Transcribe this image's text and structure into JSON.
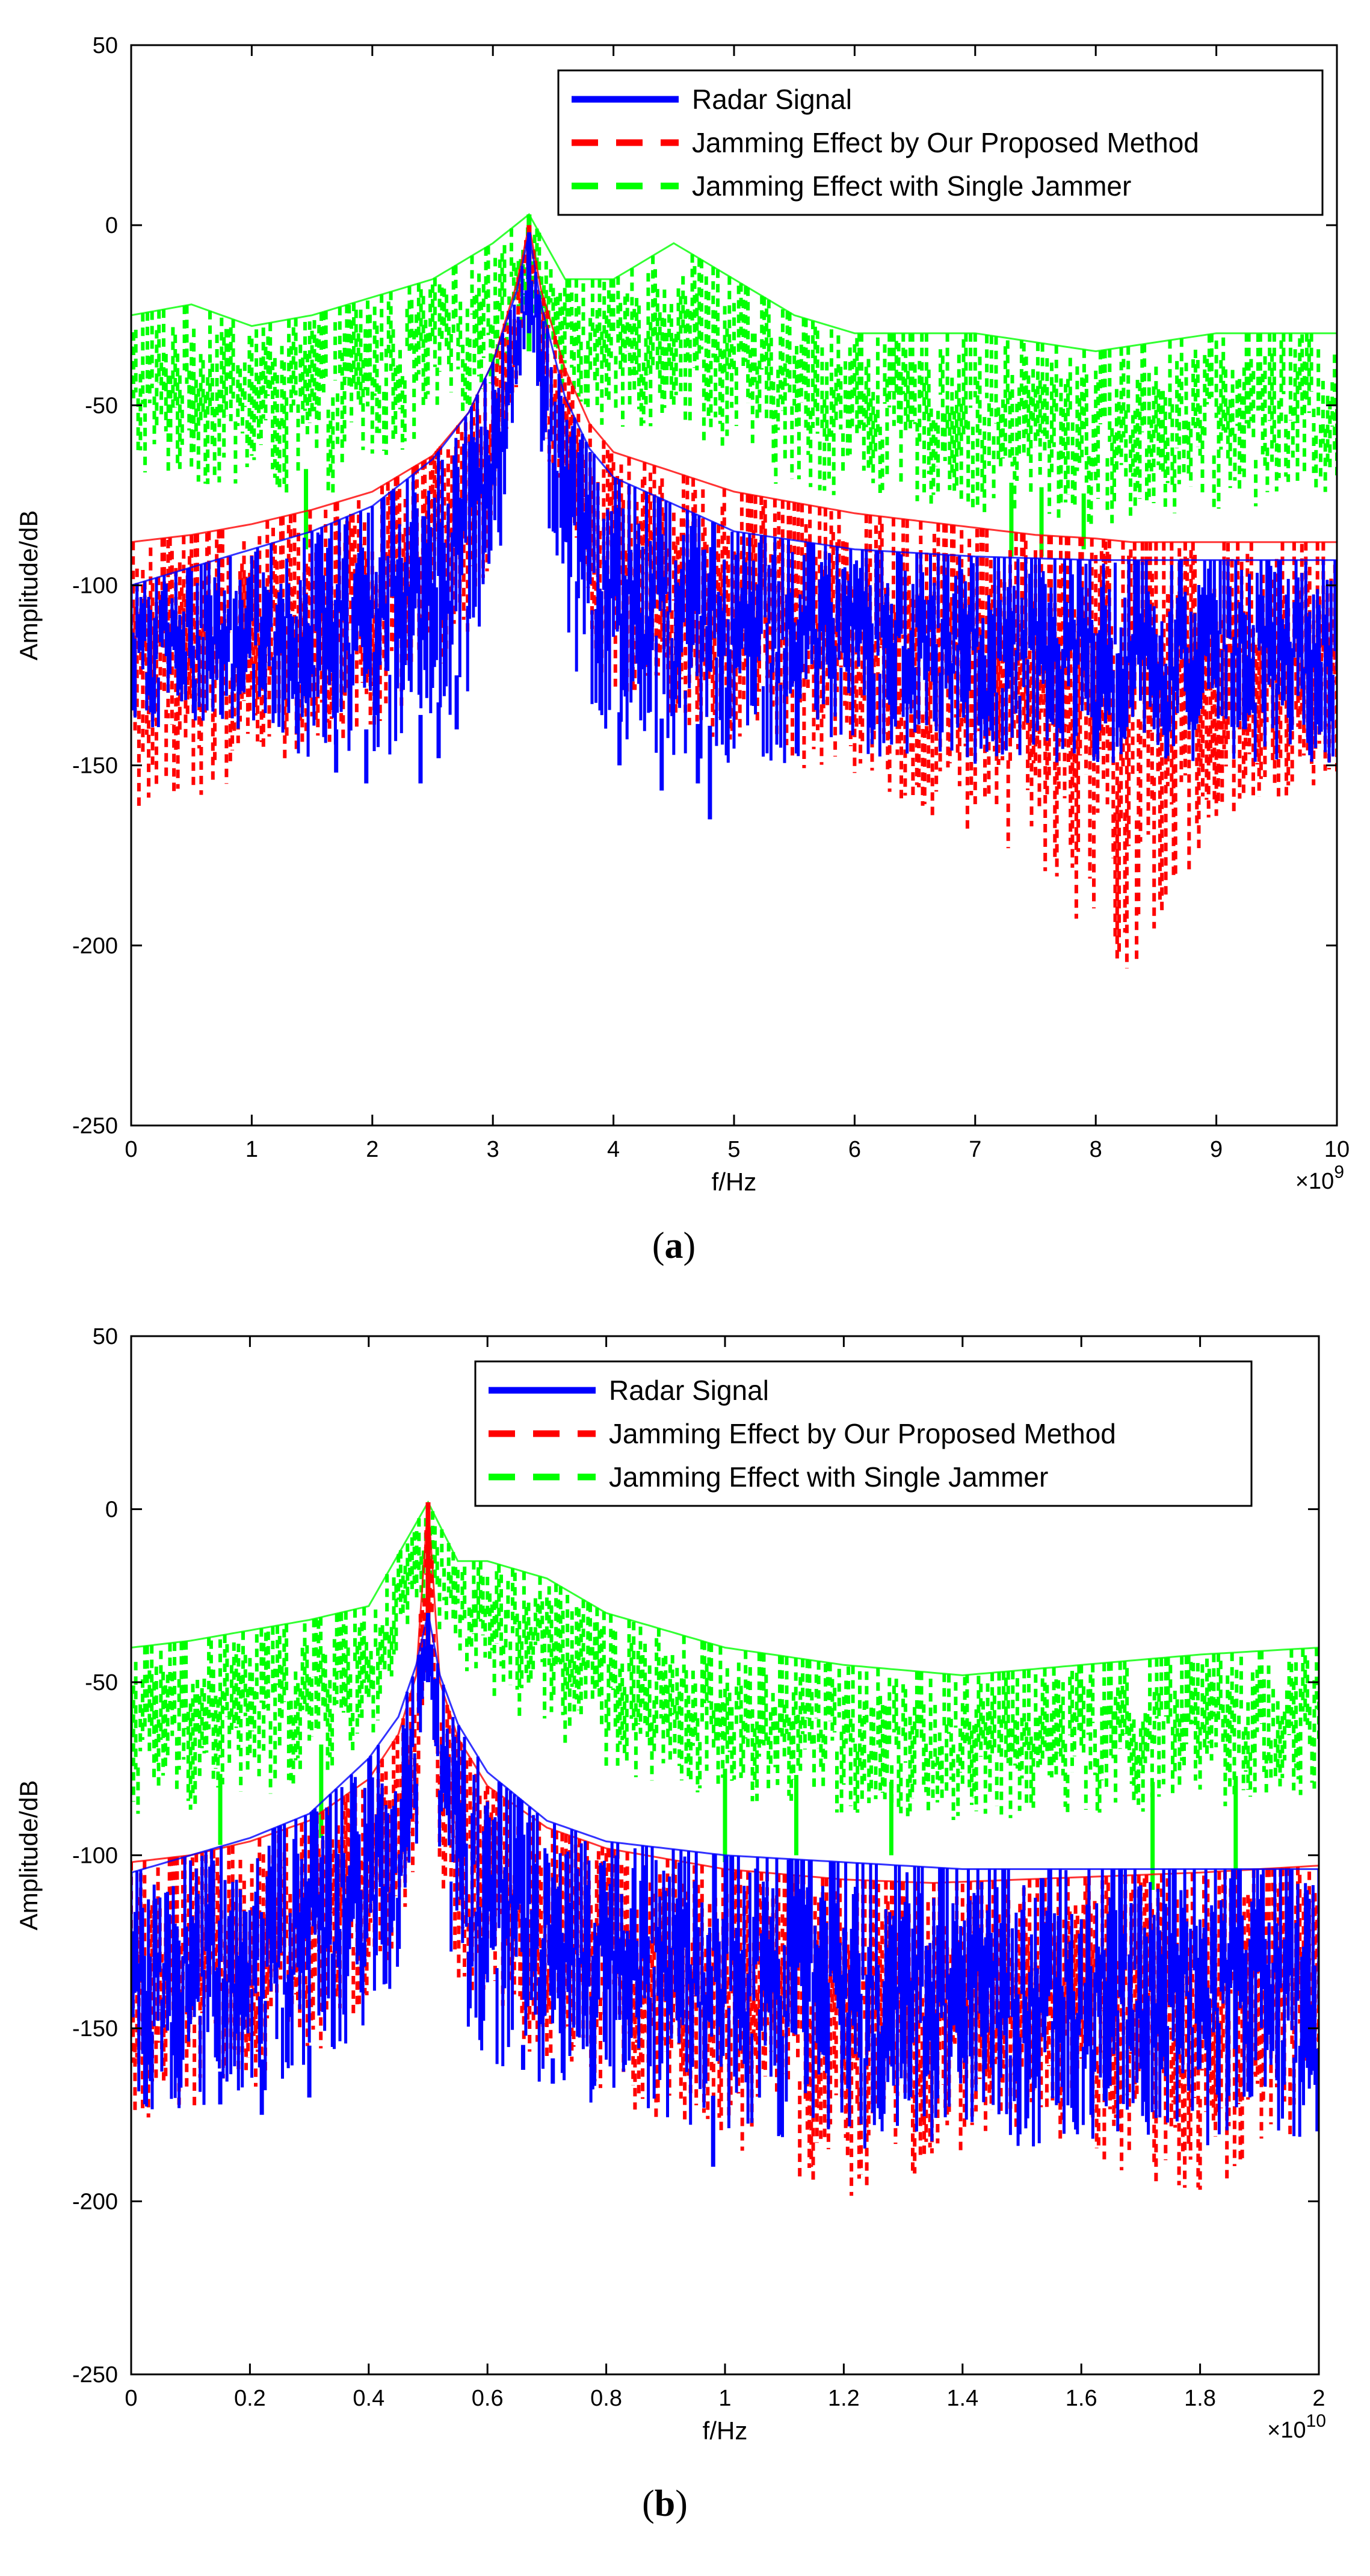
{
  "colors": {
    "radar": "#0000ff",
    "proposed": "#ff0000",
    "single": "#00ff00",
    "axis": "#000000",
    "background": "#ffffff"
  },
  "chart_data": [
    {
      "id": "a",
      "type": "line",
      "caption": "(a)",
      "caption_letter": "a",
      "xlabel": "f/Hz",
      "ylabel": "Amplitude/dB",
      "x_exponent_base": "×10",
      "x_exponent": "9",
      "xlim": [
        0,
        10
      ],
      "ylim": [
        -250,
        50
      ],
      "xticks": [
        0,
        1,
        2,
        3,
        4,
        5,
        6,
        7,
        8,
        9,
        10
      ],
      "xtick_labels": [
        "0",
        "1",
        "2",
        "3",
        "4",
        "5",
        "6",
        "7",
        "8",
        "9",
        "10"
      ],
      "yticks": [
        50,
        0,
        -50,
        -100,
        -150,
        -200,
        -250
      ],
      "ytick_labels": [
        "50",
        "0",
        "-50",
        "-100",
        "-150",
        "-200",
        "-250"
      ],
      "legend_position": "top-right",
      "legend": [
        "Radar Signal",
        "Jamming Effect by Our Proposed Method",
        "Jamming Effect with Single Jammer"
      ],
      "series": [
        {
          "name": "Radar Signal",
          "style": "solid",
          "peak_x": 3.3,
          "x": [
            0,
            0.5,
            1,
            1.5,
            2,
            2.5,
            2.8,
            3.0,
            3.2,
            3.3,
            3.4,
            3.6,
            3.8,
            4,
            5,
            6,
            7,
            8,
            9,
            10
          ],
          "upper": [
            -100,
            -95,
            -90,
            -85,
            -78,
            -65,
            -52,
            -38,
            -18,
            -2,
            -22,
            -48,
            -62,
            -70,
            -85,
            -90,
            -92,
            -93,
            -93,
            -93
          ],
          "lower": [
            -140,
            -140,
            -140,
            -150,
            -150,
            -145,
            -130,
            -110,
            -60,
            -20,
            -70,
            -115,
            -135,
            -145,
            -150,
            -150,
            -150,
            -150,
            -150,
            -150
          ],
          "spikes": [
            [
              1.7,
              -152
            ],
            [
              1.95,
              -155
            ],
            [
              2.4,
              -155
            ],
            [
              2.55,
              -148
            ],
            [
              2.7,
              -140
            ],
            [
              4.05,
              -150
            ],
            [
              4.4,
              -157
            ],
            [
              4.8,
              -165
            ],
            [
              4.7,
              -155
            ]
          ]
        },
        {
          "name": "Jamming Effect by Our Proposed Method",
          "style": "dashed",
          "peak_x": 3.3,
          "x": [
            0,
            0.5,
            1,
            1.5,
            2,
            2.5,
            2.8,
            3.0,
            3.2,
            3.3,
            3.4,
            3.6,
            3.8,
            4,
            5,
            6,
            7,
            7.5,
            8,
            8.3,
            8.6,
            9,
            9.5,
            10
          ],
          "upper": [
            -88,
            -86,
            -83,
            -79,
            -74,
            -64,
            -52,
            -38,
            -16,
            0,
            -18,
            -40,
            -55,
            -63,
            -74,
            -80,
            -84,
            -86,
            -87,
            -88,
            -88,
            -88,
            -88,
            -88
          ],
          "lower": [
            -165,
            -160,
            -155,
            -148,
            -140,
            -128,
            -115,
            -95,
            -45,
            -10,
            -55,
            -98,
            -120,
            -130,
            -145,
            -155,
            -170,
            -185,
            -200,
            -210,
            -195,
            -175,
            -160,
            -155
          ]
        },
        {
          "name": "Jamming Effect with Single Jammer",
          "style": "dashed",
          "peak_x": 3.3,
          "x": [
            0,
            0.5,
            1,
            1.5,
            2,
            2.5,
            3,
            3.3,
            3.6,
            4,
            4.5,
            5,
            5.5,
            6,
            7,
            8,
            9,
            10
          ],
          "upper": [
            -25,
            -22,
            -28,
            -25,
            -20,
            -15,
            -5,
            3,
            -15,
            -15,
            -5,
            -15,
            -25,
            -30,
            -30,
            -35,
            -30,
            -30
          ],
          "lower": [
            -70,
            -72,
            -75,
            -78,
            -68,
            -60,
            -45,
            -25,
            -50,
            -60,
            -55,
            -65,
            -75,
            -75,
            -80,
            -85,
            -80,
            -75
          ],
          "spikes": [
            [
              1.45,
              -90
            ],
            [
              7.3,
              -92
            ],
            [
              7.55,
              -92
            ],
            [
              7.9,
              -90
            ]
          ]
        }
      ]
    },
    {
      "id": "b",
      "type": "line",
      "caption": "(b)",
      "caption_letter": "b",
      "xlabel": "f/Hz",
      "ylabel": "Amplitude/dB",
      "x_exponent_base": "×10",
      "x_exponent": "10",
      "xlim": [
        0,
        2
      ],
      "ylim": [
        -250,
        50
      ],
      "xticks": [
        0,
        0.2,
        0.4,
        0.6,
        0.8,
        1,
        1.2,
        1.4,
        1.6,
        1.8,
        2
      ],
      "xtick_labels": [
        "0",
        "0.2",
        "0.4",
        "0.6",
        "0.8",
        "1",
        "1.2",
        "1.4",
        "1.6",
        "1.8",
        "2"
      ],
      "yticks": [
        50,
        0,
        -50,
        -100,
        -150,
        -200,
        -250
      ],
      "ytick_labels": [
        "50",
        "0",
        "-50",
        "-100",
        "-150",
        "-200",
        "-250"
      ],
      "legend_position": "top-right",
      "legend": [
        "Radar Signal",
        "Jamming Effect by Our Proposed Method",
        "Jamming Effect with Single Jammer"
      ],
      "series": [
        {
          "name": "Radar Signal",
          "style": "solid",
          "peak_x": 0.5,
          "x": [
            0,
            0.1,
            0.2,
            0.3,
            0.4,
            0.45,
            0.48,
            0.5,
            0.52,
            0.55,
            0.6,
            0.7,
            0.8,
            1,
            1.2,
            1.4,
            1.6,
            1.8,
            2
          ],
          "upper": [
            -105,
            -100,
            -95,
            -88,
            -72,
            -60,
            -45,
            -30,
            -48,
            -62,
            -76,
            -90,
            -96,
            -100,
            -102,
            -104,
            -104,
            -104,
            -104
          ],
          "lower": [
            -175,
            -175,
            -170,
            -165,
            -150,
            -135,
            -100,
            -40,
            -110,
            -145,
            -160,
            -168,
            -175,
            -180,
            -185,
            -185,
            -185,
            -185,
            -185
          ],
          "spikes": [
            [
              0.15,
              -172
            ],
            [
              0.22,
              -175
            ],
            [
              0.3,
              -170
            ],
            [
              0.66,
              -162
            ],
            [
              0.71,
              -166
            ],
            [
              0.98,
              -190
            ]
          ]
        },
        {
          "name": "Jamming Effect by Our Proposed Method",
          "style": "dashed",
          "peak_x": 0.5,
          "x": [
            0,
            0.1,
            0.2,
            0.3,
            0.4,
            0.45,
            0.48,
            0.5,
            0.52,
            0.55,
            0.6,
            0.7,
            0.8,
            1,
            1.2,
            1.35,
            1.5,
            1.65,
            1.8,
            1.9,
            2
          ],
          "upper": [
            -102,
            -100,
            -96,
            -90,
            -78,
            -65,
            -48,
            2,
            -50,
            -66,
            -80,
            -92,
            -98,
            -104,
            -107,
            -108,
            -107,
            -106,
            -105,
            -104,
            -103
          ],
          "lower": [
            -180,
            -175,
            -168,
            -160,
            -145,
            -130,
            -100,
            -30,
            -105,
            -140,
            -150,
            -160,
            -170,
            -185,
            -200,
            -190,
            -180,
            -190,
            -200,
            -190,
            -178
          ]
        },
        {
          "name": "Jamming Effect with Single Jammer",
          "style": "dashed",
          "peak_x": 0.5,
          "x": [
            0,
            0.1,
            0.2,
            0.3,
            0.4,
            0.5,
            0.55,
            0.6,
            0.7,
            0.8,
            1,
            1.2,
            1.4,
            1.6,
            1.8,
            2
          ],
          "upper": [
            -40,
            -38,
            -35,
            -32,
            -28,
            2,
            -15,
            -15,
            -20,
            -30,
            -40,
            -45,
            -48,
            -45,
            -42,
            -40
          ],
          "lower": [
            -90,
            -88,
            -85,
            -80,
            -70,
            -30,
            -45,
            -55,
            -65,
            -75,
            -85,
            -88,
            -90,
            -90,
            -88,
            -85
          ],
          "spikes": [
            [
              0.15,
              -97
            ],
            [
              0.32,
              -95
            ],
            [
              1.0,
              -102
            ],
            [
              1.12,
              -100
            ],
            [
              1.28,
              -100
            ],
            [
              1.72,
              -110
            ],
            [
              1.86,
              -107
            ]
          ]
        }
      ]
    }
  ]
}
